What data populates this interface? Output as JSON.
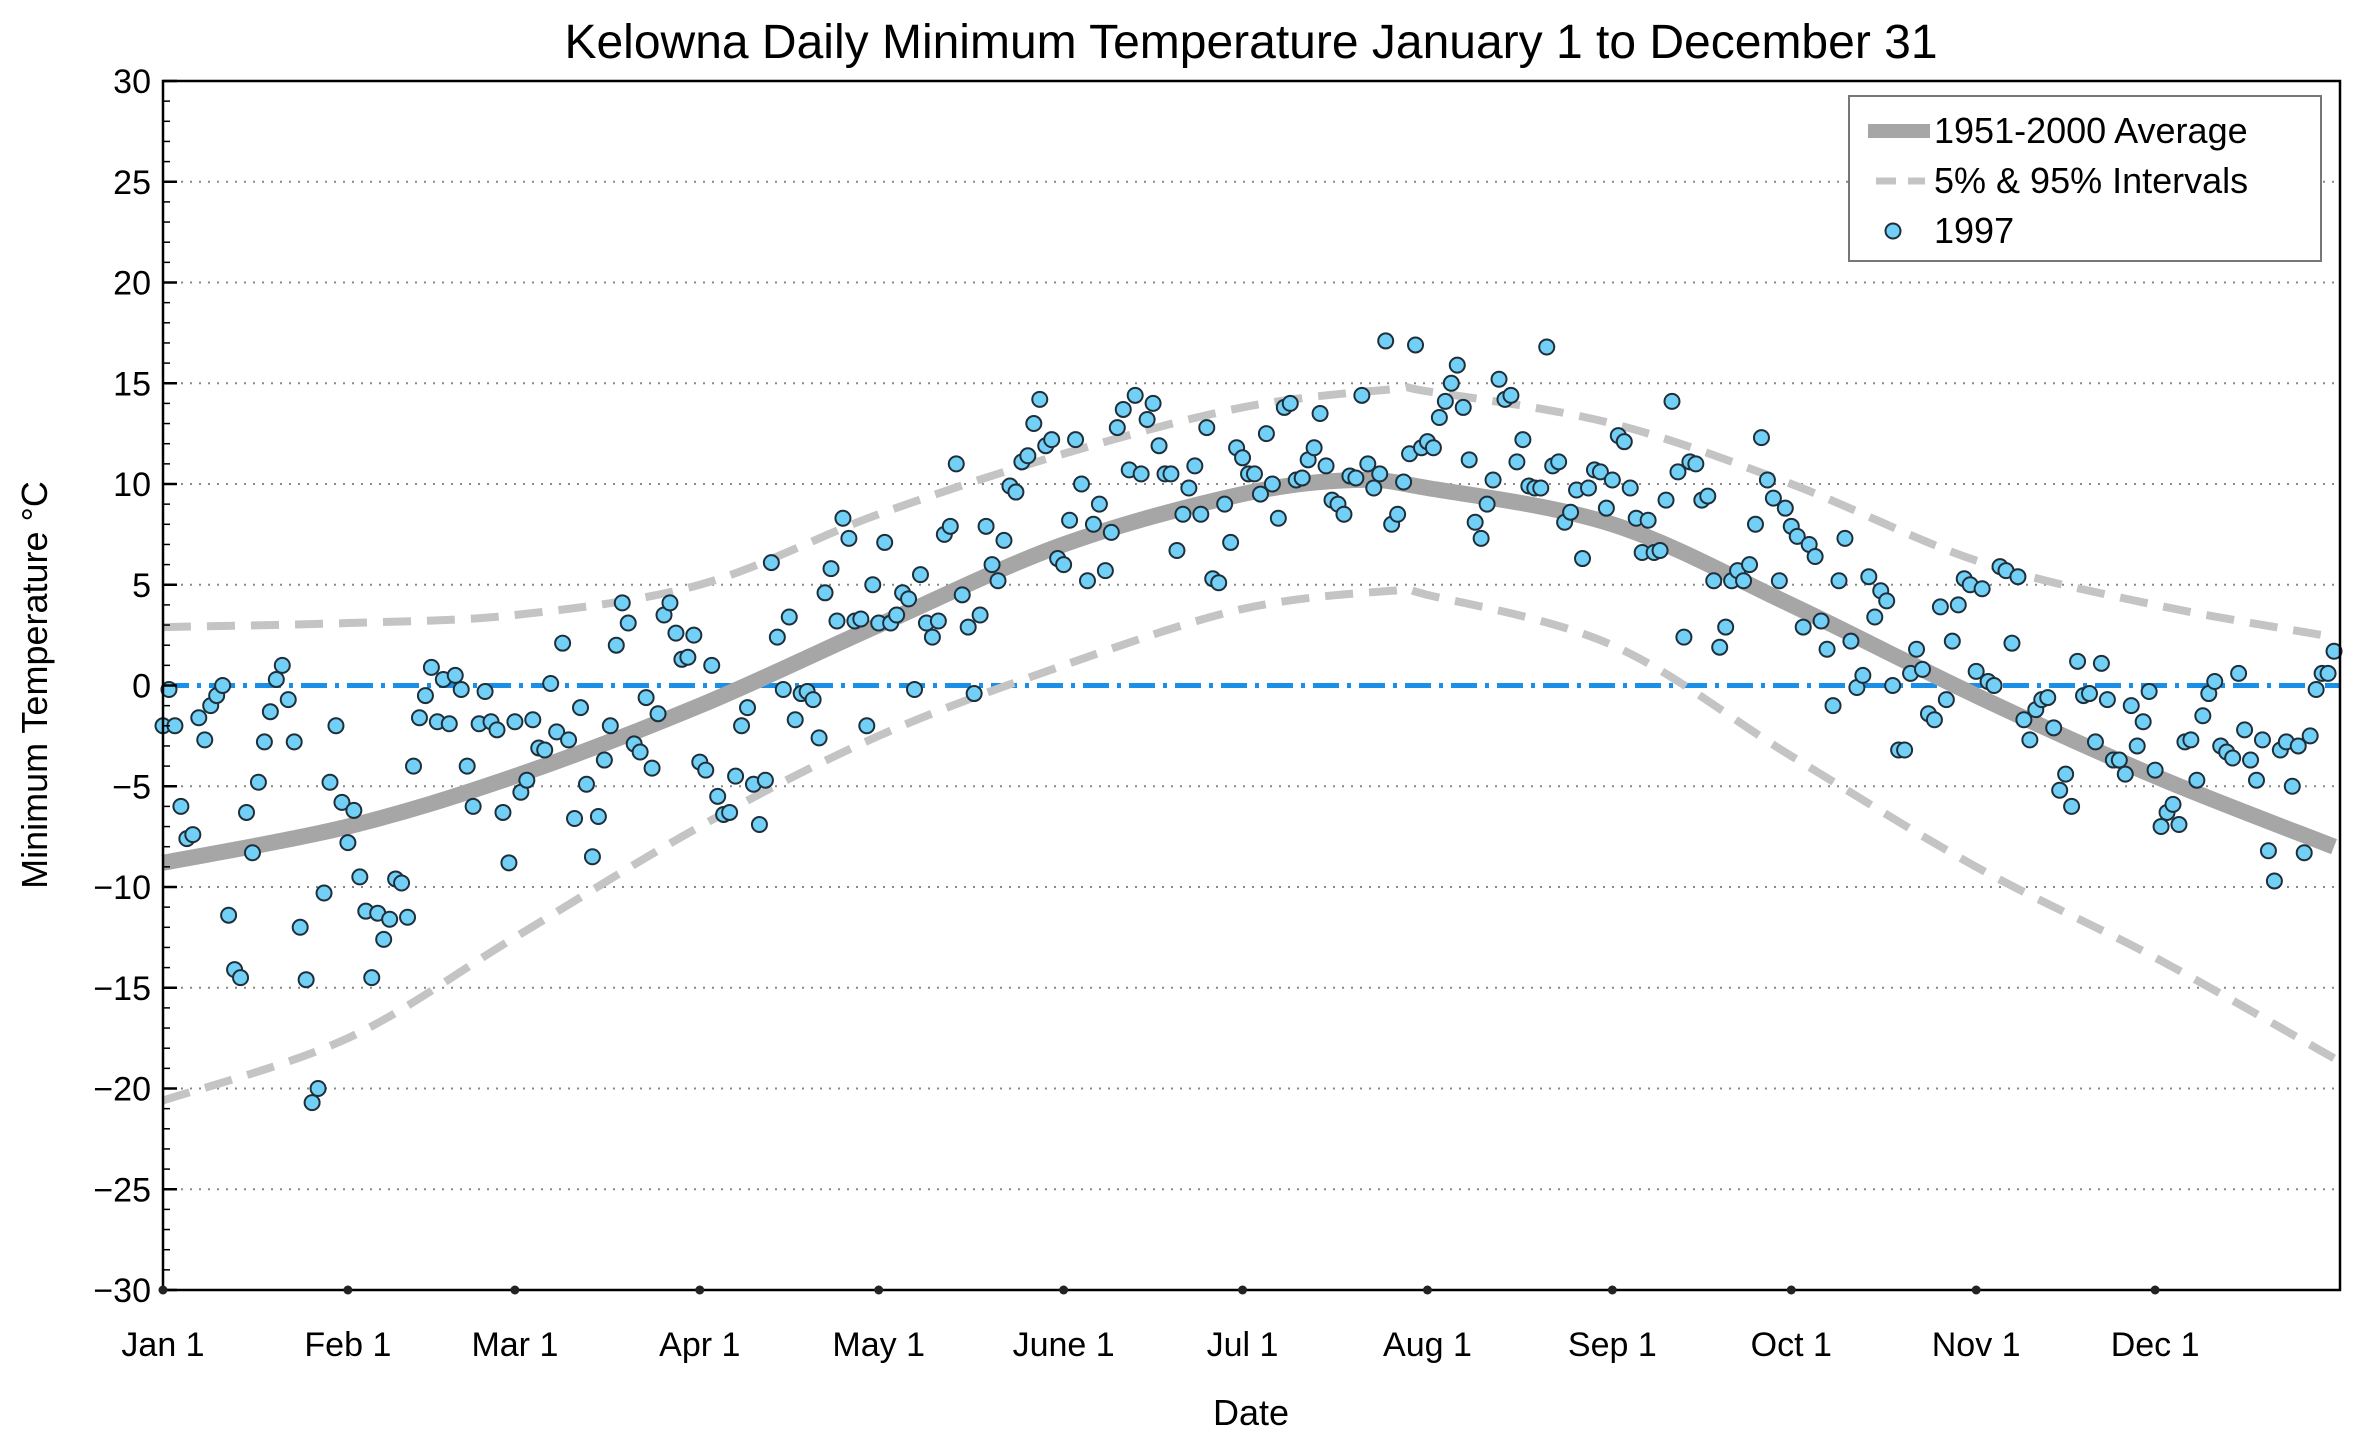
{
  "chart_data": {
    "type": "scatter",
    "title": "Kelowna Daily Minimum Temperature January 1 to December 31",
    "xlabel": "Date",
    "ylabel": "Minimum Temperature °C",
    "ylim": [
      -30,
      30
    ],
    "yticks": [
      30,
      25,
      20,
      15,
      10,
      5,
      0,
      -5,
      -10,
      -15,
      -20,
      -25,
      -30
    ],
    "ytick_labels": [
      "30",
      "25",
      "20",
      "15",
      "10",
      "5",
      "0",
      "−5",
      "−10",
      "−15",
      "−20",
      "−25",
      "−30"
    ],
    "xlim_days": [
      0,
      365
    ],
    "xticks": [
      {
        "day": 0,
        "label": "Jan 1"
      },
      {
        "day": 31,
        "label": "Feb 1"
      },
      {
        "day": 59,
        "label": "Mar 1"
      },
      {
        "day": 90,
        "label": "Apr 1"
      },
      {
        "day": 120,
        "label": "May 1"
      },
      {
        "day": 151,
        "label": "June 1"
      },
      {
        "day": 181,
        "label": "Jul 1"
      },
      {
        "day": 212,
        "label": "Aug 1"
      },
      {
        "day": 243,
        "label": "Sep 1"
      },
      {
        "day": 273,
        "label": "Oct 1"
      },
      {
        "day": 304,
        "label": "Nov 1"
      },
      {
        "day": 334,
        "label": "Dec 1"
      }
    ],
    "grid": "horizontal dotted",
    "reference_line": {
      "y": 0,
      "color": "#1a8fe8"
    },
    "legend": {
      "placement": "top-right",
      "entries": [
        "1951-2000 Average",
        "5% & 95% Intervals",
        "1997"
      ]
    },
    "colors": {
      "average": "#a6a6a6",
      "interval": "#c4c4c4",
      "point_fill": "#72d0f7",
      "point_edge": "#1f2f3a",
      "zero_line": "#1a8fe8"
    },
    "average": {
      "days": [
        0,
        31,
        59,
        90,
        120,
        151,
        181,
        200,
        212,
        243,
        273,
        304,
        334,
        364
      ],
      "values": [
        -8.8,
        -7.0,
        -4.5,
        -1.0,
        3.0,
        7.0,
        9.5,
        10.2,
        9.8,
        8.0,
        4.0,
        -0.5,
        -4.5,
        -8.0
      ]
    },
    "p95": {
      "days": [
        0,
        31,
        59,
        90,
        120,
        151,
        181,
        206,
        212,
        243,
        273,
        304,
        334,
        364
      ],
      "values": [
        2.9,
        3.1,
        3.5,
        5.0,
        8.5,
        11.5,
        13.8,
        14.7,
        14.6,
        13.0,
        10.0,
        6.2,
        4.0,
        2.4
      ]
    },
    "p5": {
      "days": [
        0,
        31,
        59,
        90,
        120,
        151,
        181,
        206,
        212,
        243,
        273,
        304,
        334,
        364
      ],
      "values": [
        -20.6,
        -17.5,
        -12.5,
        -7.0,
        -2.5,
        1.0,
        3.8,
        4.7,
        4.5,
        2.0,
        -3.5,
        -9.0,
        -13.5,
        -18.5
      ]
    },
    "series_1997": [
      -2,
      -0.2,
      -2,
      -6,
      -7.6,
      -7.4,
      -1.6,
      -2.7,
      -1,
      -0.5,
      0,
      -11.4,
      -14.1,
      -14.5,
      -6.3,
      -8.3,
      -4.8,
      -2.8,
      -1.3,
      0.3,
      1,
      -0.7,
      -2.8,
      -12,
      -14.6,
      -20.7,
      -20,
      -10.3,
      -4.8,
      -2,
      -5.8,
      -7.8,
      -6.2,
      -9.5,
      -11.2,
      -14.5,
      -11.3,
      -12.6,
      -11.6,
      -9.6,
      -9.8,
      -11.5,
      -4,
      -1.6,
      -0.5,
      0.9,
      -1.8,
      0.3,
      -1.9,
      0.5,
      -0.2,
      -4,
      -6,
      -1.9,
      -0.3,
      -1.8,
      -2.2,
      -6.3,
      -8.8,
      -1.8,
      -5.3,
      -4.7,
      -1.7,
      -3.1,
      -3.2,
      0.1,
      -2.3,
      2.1,
      -2.7,
      -6.6,
      -1.1,
      -4.9,
      -8.5,
      -6.5,
      -3.7,
      -2,
      2,
      4.1,
      3.1,
      -2.9,
      -3.3,
      -0.6,
      -4.1,
      -1.4,
      3.5,
      4.1,
      2.6,
      1.3,
      1.4,
      2.5,
      -3.8,
      -4.2,
      1,
      -5.5,
      -6.4,
      -6.3,
      -4.5,
      -2,
      -1.1,
      -4.9,
      -6.9,
      -4.7,
      6.1,
      2.4,
      -0.2,
      3.4,
      -1.7,
      -0.4,
      -0.3,
      -0.7,
      -2.6,
      4.6,
      5.8,
      3.2,
      8.3,
      7.3,
      3.2,
      3.3,
      -2,
      5,
      3.1,
      7.1,
      3.1,
      3.5,
      4.6,
      4.3,
      -0.2,
      5.5,
      3.1,
      2.4,
      3.2,
      7.5,
      7.9,
      11,
      4.5,
      2.9,
      -0.4,
      3.5,
      7.9,
      6,
      5.2,
      7.2,
      9.9,
      9.6,
      11.1,
      11.4,
      13,
      14.2,
      11.9,
      12.2,
      6.3,
      6,
      8.2,
      12.2,
      10,
      5.2,
      8,
      9,
      5.7,
      7.6,
      12.8,
      13.7,
      10.7,
      14.4,
      10.5,
      13.2,
      14,
      11.9,
      10.5,
      10.5,
      6.7,
      8.5,
      9.8,
      10.9,
      8.5,
      12.8,
      5.3,
      5.1,
      9,
      7.1,
      11.8,
      11.3,
      10.5,
      10.5,
      9.5,
      12.5,
      10,
      8.3,
      13.8,
      14,
      10.2,
      10.3,
      11.2,
      11.8,
      13.5,
      10.9,
      9.2,
      9,
      8.5,
      10.4,
      10.3,
      14.4,
      11,
      9.8,
      10.5,
      17.1,
      8,
      8.5,
      10.1,
      11.5,
      16.9,
      11.8,
      12.1,
      11.8,
      13.3,
      14.1,
      15,
      15.9,
      13.8,
      11.2,
      8.1,
      7.3,
      9,
      10.2,
      15.2,
      14.2,
      14.4,
      11.1,
      12.2,
      9.9,
      9.8,
      9.8,
      16.8,
      10.9,
      11.1,
      8.1,
      8.6,
      9.7,
      6.3,
      9.8,
      10.7,
      10.6,
      8.8,
      10.2,
      12.4,
      12.1,
      9.8,
      8.3,
      6.6,
      8.2,
      6.6,
      6.7,
      9.2,
      14.1,
      10.6,
      2.4,
      11.1,
      11,
      9.2,
      9.4,
      5.2,
      1.9,
      2.9,
      5.2,
      5.7,
      5.2,
      6,
      8,
      12.3,
      10.2,
      9.3,
      5.2,
      8.8,
      7.9,
      7.4,
      2.9,
      7,
      6.4,
      3.2,
      1.8,
      -1,
      5.2,
      7.3,
      2.2,
      -0.1,
      0.5,
      5.4,
      3.4,
      4.7,
      4.2,
      0,
      -3.2,
      -3.2,
      0.6,
      1.8,
      0.8,
      -1.4,
      -1.7,
      3.9,
      -0.7,
      2.2,
      4,
      5.3,
      5,
      0.7,
      4.8,
      0.2,
      0,
      5.9,
      5.7,
      2.1,
      5.4,
      -1.7,
      -2.7,
      -1.2,
      -0.7,
      -0.6,
      -2.1,
      -5.2,
      -4.4,
      -6,
      1.2,
      -0.5,
      -0.4,
      -2.8,
      1.1,
      -0.7,
      -3.7,
      -3.7,
      -4.4,
      -1,
      -3,
      -1.8,
      -0.3,
      -4.2,
      -7,
      -6.3,
      -5.9,
      -6.9,
      -2.8,
      -2.7,
      -4.7,
      -1.5,
      -0.4,
      0.2,
      -3,
      -3.3,
      -3.6,
      0.6,
      -2.2,
      -3.7,
      -4.7,
      -2.7,
      -8.2,
      -9.7,
      -3.2,
      -2.8,
      -5,
      -3,
      -8.3,
      -2.5,
      -0.2,
      0.6,
      0.6,
      1.7
    ]
  }
}
